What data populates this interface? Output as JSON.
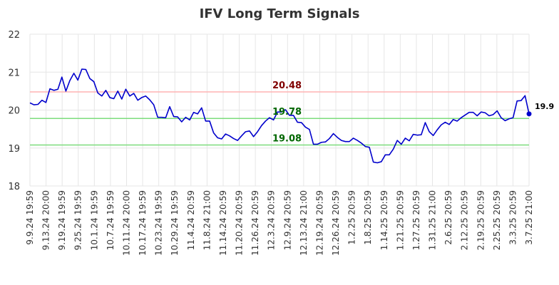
{
  "chart_data": {
    "type": "line",
    "title": "IFV Long Term Signals",
    "ylim": [
      18,
      22
    ],
    "yticks": [
      18,
      19,
      20,
      21,
      22
    ],
    "xtick_labels": [
      "9.9.24 19:59",
      "9.13.24 20:00",
      "9.19.24 19:59",
      "9.25.24 19:59",
      "10.1.24 19:59",
      "10.7.24 19:59",
      "10.11.24 20:00",
      "10.17.24 19:59",
      "10.23.24 19:59",
      "10.29.24 19:59",
      "11.4.24 20:59",
      "11.8.24 21:00",
      "11.14.24 20:59",
      "11.20.24 20:59",
      "11.26.24 20:59",
      "12.3.24 20:59",
      "12.9.24 20:59",
      "12.13.24 21:00",
      "12.19.24 20:59",
      "12.26.24 20:59",
      "1.2.25 20:59",
      "1.8.25 20:59",
      "1.14.25 20:59",
      "1.21.25 20:59",
      "1.27.25 20:59",
      "1.31.25 21:00",
      "2.6.25 20:59",
      "2.12.25 20:59",
      "2.19.25 20:59",
      "2.25.25 20:59",
      "3.3.25 20:59",
      "3.7.25 21:00"
    ],
    "grid": true,
    "series": [
      {
        "color": "#0000cc",
        "values": [
          20.19,
          20.14,
          20.15,
          20.26,
          20.2,
          20.56,
          20.52,
          20.55,
          20.87,
          20.5,
          20.78,
          20.97,
          20.79,
          21.08,
          21.07,
          20.83,
          20.75,
          20.45,
          20.37,
          20.52,
          20.33,
          20.3,
          20.5,
          20.29,
          20.55,
          20.37,
          20.44,
          20.26,
          20.33,
          20.37,
          20.27,
          20.14,
          19.81,
          19.81,
          19.8,
          20.09,
          19.83,
          19.82,
          19.69,
          19.81,
          19.74,
          19.94,
          19.9,
          20.06,
          19.71,
          19.71,
          19.4,
          19.27,
          19.24,
          19.37,
          19.32,
          19.25,
          19.2,
          19.32,
          19.43,
          19.45,
          19.3,
          19.43,
          19.59,
          19.71,
          19.8,
          19.74,
          19.95,
          19.95,
          20.01,
          19.86,
          19.86,
          19.68,
          19.67,
          19.55,
          19.49,
          19.1,
          19.1,
          19.15,
          19.16,
          19.25,
          19.38,
          19.28,
          19.2,
          19.17,
          19.17,
          19.26,
          19.2,
          19.13,
          19.04,
          19.02,
          18.63,
          18.61,
          18.64,
          18.82,
          18.82,
          18.97,
          19.2,
          19.1,
          19.26,
          19.19,
          19.36,
          19.34,
          19.35,
          19.67,
          19.43,
          19.33,
          19.48,
          19.61,
          19.68,
          19.62,
          19.75,
          19.71,
          19.8,
          19.87,
          19.94,
          19.94,
          19.85,
          19.95,
          19.93,
          19.85,
          19.88,
          19.98,
          19.8,
          19.72,
          19.77,
          19.8,
          20.24,
          20.25,
          20.38,
          19.9
        ]
      }
    ],
    "reference_lines": [
      {
        "value": 20.48,
        "label": "20.48",
        "line_color": "#ffb3b3",
        "label_color": "#800000"
      },
      {
        "value": 19.78,
        "label": "19.78",
        "line_color": "#7ddc7d",
        "label_color": "#006600"
      },
      {
        "value": 19.08,
        "label": "19.08",
        "line_color": "#7ddc7d",
        "label_color": "#006600"
      }
    ],
    "last_value_label": "19.9"
  }
}
